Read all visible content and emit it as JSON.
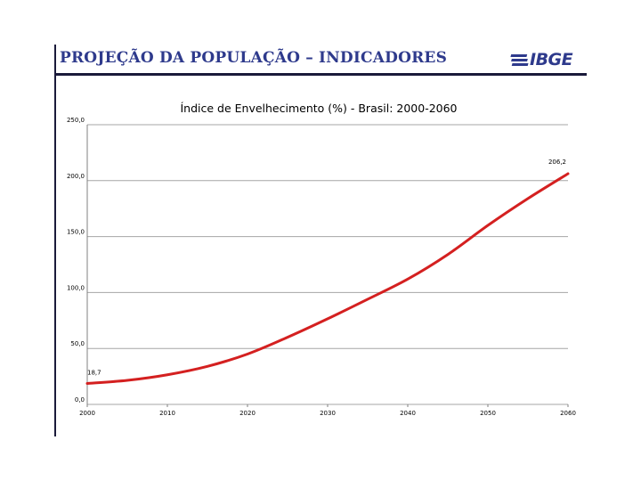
{
  "slide": {
    "title": "PROJEÇÃO DA POPULAÇÃO – INDICADORES",
    "logo_text": "IBGE",
    "accent": "#2e3a8c"
  },
  "chart_data": {
    "type": "line",
    "title": "Índice de Envelhecimento (%) - Brasil: 2000-2060",
    "xlabel": "",
    "ylabel": "",
    "xlim": [
      2000,
      2060
    ],
    "ylim": [
      0,
      250
    ],
    "x_ticks": [
      "2000",
      "2010",
      "2020",
      "2030",
      "2040",
      "2050",
      "2060"
    ],
    "y_ticks": [
      "0,0",
      "50,0",
      "100,0",
      "150,0",
      "200,0",
      "250,0"
    ],
    "grid": true,
    "series": [
      {
        "color": "#d42020",
        "x": [
          2000,
          2005,
          2010,
          2015,
          2020,
          2025,
          2030,
          2035,
          2040,
          2045,
          2050,
          2055,
          2060
        ],
        "values": [
          18.7,
          21.5,
          26.5,
          34.0,
          45.0,
          60.0,
          76.5,
          94.0,
          112.0,
          134.0,
          160.0,
          184.0,
          206.2
        ]
      }
    ],
    "annotations": [
      {
        "label": "18,7",
        "x": 2000,
        "y": 18.7
      },
      {
        "label": "206,2",
        "x": 2060,
        "y": 206.2
      }
    ]
  }
}
